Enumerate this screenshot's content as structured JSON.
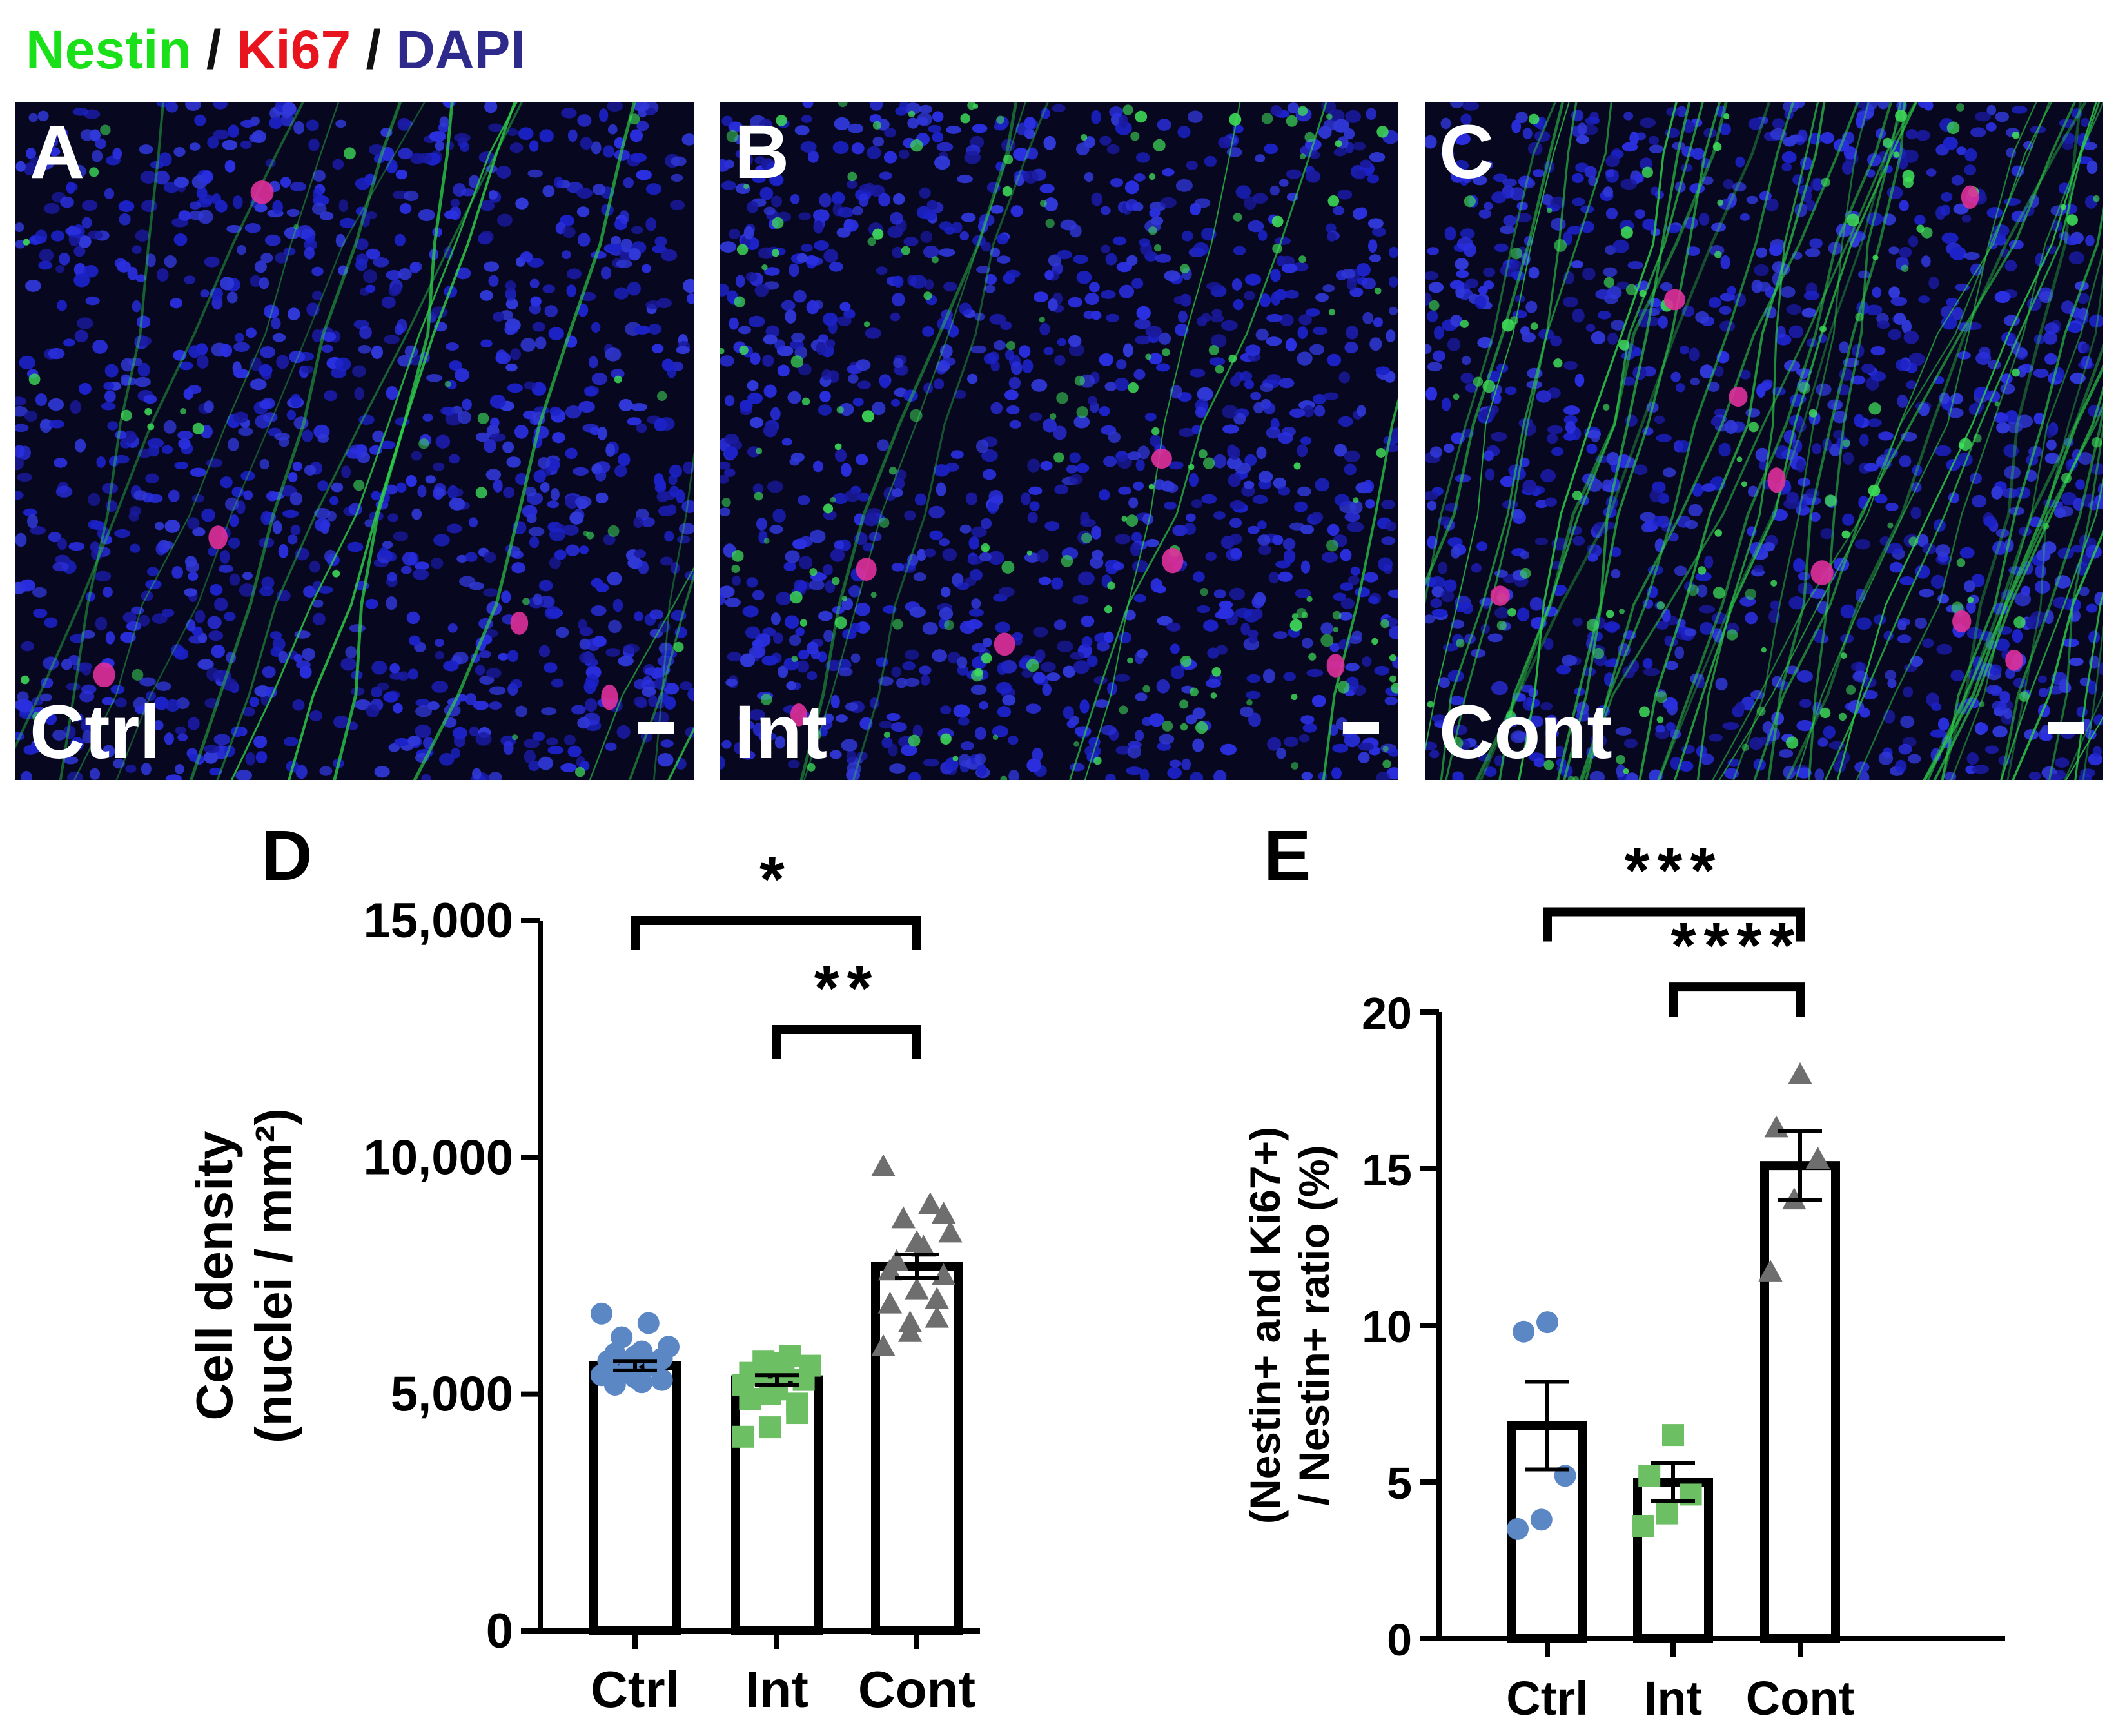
{
  "legend": {
    "nestin": {
      "label": "Nestin",
      "color": "#19e019"
    },
    "sep1": " / ",
    "ki67": {
      "label": "Ki67",
      "color": "#e8141e"
    },
    "sep2": " / ",
    "dapi": {
      "label": "DAPI",
      "color": "#2e2a8c"
    }
  },
  "panels": [
    {
      "letter": "A",
      "label": "Ctrl"
    },
    {
      "letter": "B",
      "label": "Int"
    },
    {
      "letter": "C",
      "label": "Cont"
    }
  ],
  "chart_data": [
    {
      "panel_letter": "D",
      "type": "bar",
      "categories": [
        "Ctrl",
        "Int",
        "Cont"
      ],
      "values": [
        5600,
        5300,
        7700
      ],
      "sem": [
        100,
        100,
        250
      ],
      "ylabel_line1": "Cell density",
      "ylabel_line2": "(nuclei / mm²)",
      "ylim": [
        0,
        15000
      ],
      "yticks": [
        0,
        5000,
        10000,
        15000
      ],
      "yticklabels": [
        "0",
        "5,000",
        "10,000",
        "15,000"
      ],
      "points": [
        [
          5400,
          5500,
          5600,
          5700,
          5800,
          5300,
          5200,
          5900,
          6000,
          6200,
          6500,
          6700,
          5500,
          5650,
          5450,
          5350,
          5750,
          5850,
          5250
        ],
        [
          4100,
          4300,
          4600,
          4900,
          5100,
          5300,
          5400,
          5500,
          5600,
          5700,
          5800,
          5200,
          5000,
          4800,
          5450,
          5650
        ],
        [
          6000,
          6300,
          6600,
          6900,
          7200,
          7500,
          7800,
          8100,
          8400,
          8700,
          9000,
          9800,
          6500,
          7000,
          7600,
          8200,
          8800
        ]
      ],
      "point_colors": [
        "#5b87c5",
        "#6dbf63",
        "#6e6e6e"
      ],
      "point_shapes": [
        "circle",
        "square",
        "triangle"
      ],
      "significance": [
        {
          "from": 0,
          "to": 2,
          "label": "*",
          "y": 15000
        },
        {
          "from": 1,
          "to": 2,
          "label": "**",
          "y": 12700
        }
      ]
    },
    {
      "panel_letter": "E",
      "type": "bar",
      "categories": [
        "Ctrl",
        "Int",
        "Cont"
      ],
      "values": [
        6.8,
        5.0,
        15.1
      ],
      "sem": [
        1.4,
        0.6,
        1.1
      ],
      "ylabel_line1": "(Nestin+ and  Ki67+)",
      "ylabel_line2": "/ Nestin+ ratio (%)",
      "ylim": [
        0,
        20
      ],
      "yticks": [
        0,
        5,
        10,
        15,
        20
      ],
      "yticklabels": [
        "0",
        "5",
        "10",
        "15",
        "20"
      ],
      "points": [
        [
          3.5,
          3.8,
          5.2,
          9.8,
          10.1
        ],
        [
          3.6,
          4.0,
          4.6,
          5.2,
          6.5
        ],
        [
          11.7,
          14.0,
          15.3,
          16.3,
          18.0
        ]
      ],
      "point_colors": [
        "#5b87c5",
        "#6dbf63",
        "#6e6e6e"
      ],
      "point_shapes": [
        "circle",
        "square",
        "triangle"
      ],
      "significance": [
        {
          "from": 0,
          "to": 2,
          "label": "***",
          "y": 23.2
        },
        {
          "from": 1,
          "to": 2,
          "label": "****",
          "y": 20.8
        }
      ]
    }
  ]
}
